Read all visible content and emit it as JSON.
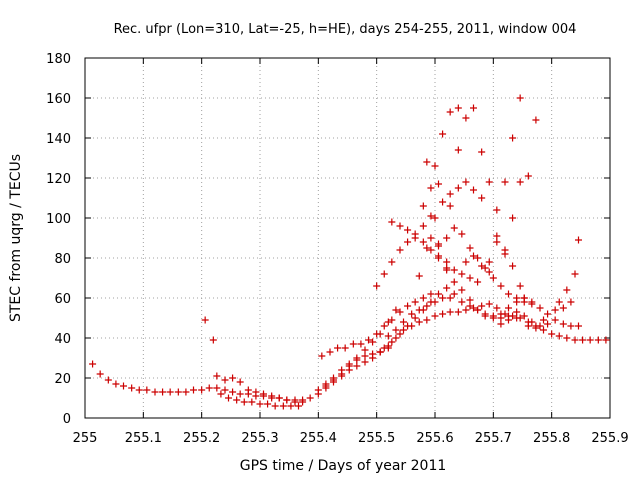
{
  "chart_data": {
    "type": "scatter",
    "title": "Rec. ufpr (Lon=310, Lat=-25, h=HE), days 254-255, 2011, window 004",
    "xlabel": "GPS time / Days of year 2011",
    "ylabel": "STEC from uqrg / TECUs",
    "xlim": [
      255,
      255.9
    ],
    "ylim": [
      0,
      180
    ],
    "x_ticks": [
      "255",
      "255.1",
      "255.2",
      "255.3",
      "255.4",
      "255.5",
      "255.6",
      "255.7",
      "255.8",
      "255.9"
    ],
    "y_ticks": [
      "0",
      "20",
      "40",
      "60",
      "80",
      "100",
      "120",
      "140",
      "160",
      "180"
    ],
    "grid": true,
    "marker": "+",
    "color": "#cc0000",
    "series": [
      {
        "x": [
          255.013,
          255.026,
          255.04,
          255.053,
          255.066,
          255.08,
          255.093,
          255.106,
          255.12,
          255.133,
          255.146,
          255.16,
          255.173,
          255.186,
          255.2,
          255.213,
          255.226,
          255.24,
          255.253,
          255.266,
          255.28,
          255.293,
          255.306,
          255.32,
          255.333,
          255.346,
          255.36,
          255.373,
          255.386,
          255.4,
          255.413,
          255.426,
          255.44,
          255.453,
          255.466,
          255.48,
          255.493,
          255.506,
          255.52,
          255.533,
          255.546,
          255.56,
          255.573,
          255.586,
          255.6,
          255.613,
          255.626,
          255.64,
          255.653,
          255.666,
          255.68,
          255.693,
          255.706,
          255.72,
          255.733,
          255.746,
          255.76,
          255.773,
          255.786,
          255.8,
          255.813,
          255.826,
          255.84,
          255.853,
          255.866,
          255.88,
          255.893,
          255.206,
          255.22,
          255.226,
          255.24,
          255.253,
          255.266,
          255.28,
          255.293,
          255.306,
          255.32,
          255.333,
          255.346,
          255.36,
          255.373,
          255.233,
          255.246,
          255.26,
          255.273,
          255.286,
          255.3,
          255.313,
          255.326,
          255.34,
          255.353,
          255.366,
          255.4,
          255.413,
          255.426,
          255.44,
          255.453,
          255.466,
          255.48,
          255.493,
          255.506,
          255.52,
          255.406,
          255.42,
          255.433,
          255.446,
          255.46,
          255.473,
          255.486,
          255.5,
          255.513,
          255.526,
          255.54,
          255.553,
          255.566,
          255.58,
          255.593,
          255.413,
          255.426,
          255.44,
          255.453,
          255.466,
          255.48,
          255.493,
          255.506,
          255.52,
          255.533,
          255.5,
          255.513,
          255.526,
          255.54,
          255.553,
          255.566,
          255.58,
          255.593,
          255.606,
          255.62,
          255.633,
          255.646,
          255.66,
          255.673,
          255.686,
          255.7,
          255.713,
          255.726,
          255.74,
          255.753,
          255.766,
          255.78,
          255.793,
          255.806,
          255.82,
          255.833,
          255.513,
          255.526,
          255.54,
          255.553,
          255.566,
          255.58,
          255.593,
          255.606,
          255.62,
          255.633,
          255.646,
          255.66,
          255.673,
          255.686,
          255.7,
          255.713,
          255.726,
          255.74,
          255.753,
          255.766,
          255.78,
          255.793,
          255.806,
          255.82,
          255.833,
          255.846,
          255.506,
          255.52,
          255.533,
          255.546,
          255.56,
          255.573,
          255.586,
          255.6,
          255.613,
          255.626,
          255.526,
          255.54,
          255.553,
          255.566,
          255.58,
          255.593,
          255.606,
          255.62,
          255.633,
          255.646,
          255.66,
          255.673,
          255.573,
          255.586,
          255.6,
          255.613,
          255.626,
          255.64,
          255.653,
          255.666,
          255.68,
          255.586,
          255.6,
          255.613,
          255.626,
          255.64,
          255.653,
          255.666,
          255.68,
          255.693,
          255.706,
          255.72,
          255.733,
          255.746,
          255.606,
          255.62,
          255.633,
          255.646,
          255.66,
          255.673,
          255.686,
          255.7,
          255.713,
          255.726,
          255.74,
          255.753,
          255.58,
          255.593,
          255.606,
          255.626,
          255.64,
          255.653,
          255.666,
          255.68,
          255.693,
          255.706,
          255.72,
          255.733,
          255.746,
          255.76,
          255.773,
          255.593,
          255.606,
          255.62,
          255.693,
          255.706,
          255.72,
          255.733,
          255.746,
          255.76,
          255.773,
          255.713,
          255.726,
          255.74,
          255.753,
          255.766,
          255.786,
          255.813,
          255.826,
          255.84,
          255.846
        ],
        "y": [
          27,
          22,
          19,
          17,
          16,
          15,
          14,
          14,
          13,
          13,
          13,
          13,
          13,
          14,
          14,
          15,
          15,
          14,
          13,
          12,
          12,
          11,
          11,
          10,
          10,
          9,
          9,
          9,
          10,
          12,
          15,
          18,
          21,
          24,
          26,
          28,
          30,
          33,
          36,
          40,
          44,
          46,
          48,
          49,
          51,
          52,
          53,
          53,
          54,
          55,
          56,
          57,
          55,
          52,
          51,
          50,
          48,
          46,
          44,
          42,
          41,
          40,
          39,
          39,
          39,
          39,
          39,
          49,
          39,
          21,
          19,
          20,
          18,
          14,
          13,
          12,
          11,
          10,
          9,
          8,
          8,
          12,
          10,
          9,
          8,
          8,
          7,
          7,
          6,
          6,
          6,
          6,
          14,
          17,
          20,
          24,
          27,
          29,
          31,
          32,
          33,
          35,
          31,
          33,
          35,
          35,
          37,
          37,
          39,
          42,
          46,
          49,
          53,
          56,
          58,
          60,
          62,
          16,
          19,
          22,
          26,
          30,
          34,
          38,
          42,
          48,
          54,
          66,
          72,
          78,
          84,
          88,
          92,
          96,
          90,
          81,
          75,
          68,
          64,
          59,
          54,
          51,
          50,
          52,
          55,
          58,
          60,
          58,
          55,
          52,
          54,
          55,
          58,
          35,
          38,
          42,
          46,
          50,
          54,
          58,
          62,
          65,
          62,
          58,
          56,
          54,
          52,
          51,
          50,
          49,
          50,
          51,
          48,
          46,
          47,
          49,
          47,
          46,
          46,
          33,
          41,
          44,
          48,
          52,
          54,
          56,
          58,
          60,
          60,
          98,
          96,
          94,
          90,
          88,
          84,
          80,
          78,
          74,
          72,
          70,
          68,
          71,
          85,
          100,
          108,
          112,
          115,
          118,
          114,
          110,
          128,
          126,
          142,
          153,
          155,
          150,
          155,
          133,
          118,
          104,
          118,
          140,
          160,
          87,
          90,
          95,
          92,
          85,
          80,
          75,
          70,
          66,
          62,
          60,
          58,
          106,
          115,
          117,
          106,
          134,
          78,
          81,
          76,
          73,
          88,
          82,
          76,
          66,
          121,
          149,
          101,
          86,
          74,
          78,
          91,
          84,
          100,
          118,
          46,
          45,
          47,
          51,
          53,
          60,
          57,
          49,
          58,
          64,
          72,
          89
        ]
      }
    ]
  }
}
